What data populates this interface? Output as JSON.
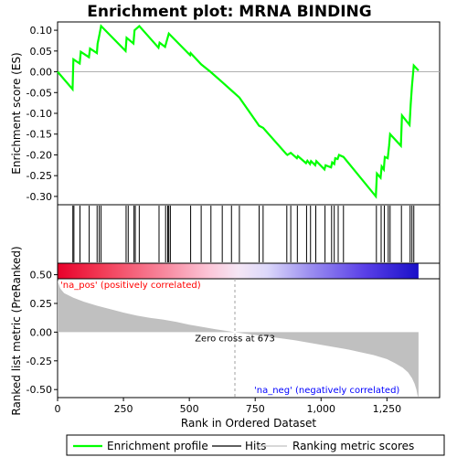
{
  "chart_data": {
    "type": "line",
    "title": "Enrichment plot: MRNA BINDING",
    "xlabel": "Rank in Ordered Dataset",
    "top_ylabel": "Enrichment score (ES)",
    "bottom_ylabel": "Ranked list metric (PreRanked)",
    "x_range": [
      0,
      1450
    ],
    "x_ticks": [
      0,
      250,
      500,
      750,
      1000,
      1250
    ],
    "x_tick_labels": [
      "0",
      "250",
      "500",
      "750",
      "1,000",
      "1,250"
    ],
    "es_range": [
      -0.32,
      0.12
    ],
    "es_ticks": [
      0.1,
      0.05,
      0.0,
      -0.05,
      -0.1,
      -0.15,
      -0.2,
      -0.25,
      -0.3
    ],
    "es_tick_labels": [
      "0.10",
      "0.05",
      "0.00",
      "-0.05",
      "-0.10",
      "-0.15",
      "-0.20",
      "-0.25",
      "-0.30"
    ],
    "metric_range": [
      -0.57,
      0.6
    ],
    "metric_ticks": [
      0.5,
      0.25,
      0.0,
      -0.25,
      -0.5
    ],
    "metric_tick_labels": [
      "0.50",
      "0.25",
      "0.00",
      "-0.25",
      "-0.50"
    ],
    "n_genes": 1370,
    "zero_cross": 673,
    "annotations": {
      "pos": "'na_pos' (positively correlated)",
      "neg": "'na_neg' (negatively correlated)",
      "zero": "Zero cross at 673"
    },
    "hits": [
      58,
      62,
      85,
      120,
      150,
      158,
      165,
      260,
      268,
      290,
      295,
      310,
      385,
      410,
      418,
      422,
      428,
      505,
      545,
      582,
      625,
      660,
      690,
      765,
      780,
      870,
      885,
      910,
      945,
      960,
      980,
      1015,
      1040,
      1050,
      1065,
      1085,
      1210,
      1228,
      1240,
      1255,
      1262,
      1305,
      1338,
      1345,
      1352
    ],
    "es_points": [
      [
        0,
        0.0
      ],
      [
        57,
        -0.042
      ],
      [
        60,
        0.03
      ],
      [
        84,
        0.02
      ],
      [
        88,
        0.048
      ],
      [
        119,
        0.035
      ],
      [
        123,
        0.056
      ],
      [
        149,
        0.045
      ],
      [
        152,
        0.068
      ],
      [
        158,
        0.086
      ],
      [
        165,
        0.11
      ],
      [
        258,
        0.05
      ],
      [
        262,
        0.082
      ],
      [
        288,
        0.068
      ],
      [
        292,
        0.1
      ],
      [
        310,
        0.11
      ],
      [
        383,
        0.058
      ],
      [
        387,
        0.07
      ],
      [
        408,
        0.06
      ],
      [
        422,
        0.092
      ],
      [
        503,
        0.04
      ],
      [
        505,
        0.045
      ],
      [
        545,
        0.018
      ],
      [
        580,
        0.0
      ],
      [
        625,
        -0.025
      ],
      [
        660,
        -0.045
      ],
      [
        690,
        -0.062
      ],
      [
        765,
        -0.13
      ],
      [
        780,
        -0.135
      ],
      [
        868,
        -0.198
      ],
      [
        872,
        -0.2
      ],
      [
        885,
        -0.195
      ],
      [
        908,
        -0.208
      ],
      [
        912,
        -0.203
      ],
      [
        943,
        -0.22
      ],
      [
        948,
        -0.214
      ],
      [
        958,
        -0.222
      ],
      [
        962,
        -0.215
      ],
      [
        978,
        -0.225
      ],
      [
        982,
        -0.215
      ],
      [
        1013,
        -0.235
      ],
      [
        1017,
        -0.225
      ],
      [
        1038,
        -0.23
      ],
      [
        1042,
        -0.218
      ],
      [
        1050,
        -0.222
      ],
      [
        1054,
        -0.208
      ],
      [
        1063,
        -0.21
      ],
      [
        1068,
        -0.2
      ],
      [
        1085,
        -0.205
      ],
      [
        1208,
        -0.3
      ],
      [
        1212,
        -0.245
      ],
      [
        1226,
        -0.255
      ],
      [
        1230,
        -0.228
      ],
      [
        1238,
        -0.235
      ],
      [
        1242,
        -0.205
      ],
      [
        1253,
        -0.208
      ],
      [
        1258,
        -0.178
      ],
      [
        1262,
        -0.15
      ],
      [
        1303,
        -0.178
      ],
      [
        1307,
        -0.105
      ],
      [
        1336,
        -0.128
      ],
      [
        1340,
        -0.08
      ],
      [
        1345,
        -0.035
      ],
      [
        1352,
        0.015
      ],
      [
        1370,
        0.003
      ]
    ],
    "metric_points": [
      [
        0,
        0.45
      ],
      [
        10,
        0.38
      ],
      [
        25,
        0.34
      ],
      [
        60,
        0.3
      ],
      [
        100,
        0.265
      ],
      [
        150,
        0.23
      ],
      [
        200,
        0.2
      ],
      [
        250,
        0.17
      ],
      [
        300,
        0.145
      ],
      [
        350,
        0.125
      ],
      [
        400,
        0.11
      ],
      [
        450,
        0.09
      ],
      [
        500,
        0.065
      ],
      [
        550,
        0.045
      ],
      [
        600,
        0.025
      ],
      [
        650,
        0.008
      ],
      [
        673,
        0.0
      ],
      [
        700,
        -0.01
      ],
      [
        750,
        -0.025
      ],
      [
        800,
        -0.04
      ],
      [
        850,
        -0.055
      ],
      [
        900,
        -0.07
      ],
      [
        950,
        -0.09
      ],
      [
        1000,
        -0.11
      ],
      [
        1050,
        -0.13
      ],
      [
        1100,
        -0.15
      ],
      [
        1150,
        -0.175
      ],
      [
        1200,
        -0.2
      ],
      [
        1250,
        -0.235
      ],
      [
        1280,
        -0.27
      ],
      [
        1310,
        -0.31
      ],
      [
        1330,
        -0.35
      ],
      [
        1345,
        -0.4
      ],
      [
        1355,
        -0.45
      ],
      [
        1362,
        -0.5
      ],
      [
        1366,
        -0.55
      ],
      [
        1370,
        -0.57
      ]
    ],
    "colorbar_stops": [
      {
        "offset": 0.0,
        "color": "#e8002a"
      },
      {
        "offset": 0.12,
        "color": "#f23a55"
      },
      {
        "offset": 0.3,
        "color": "#f88aa0"
      },
      {
        "offset": 0.42,
        "color": "#fcc6d8"
      },
      {
        "offset": 0.5,
        "color": "#f5e6f5"
      },
      {
        "offset": 0.58,
        "color": "#dcd8fa"
      },
      {
        "offset": 0.7,
        "color": "#9b8ef0"
      },
      {
        "offset": 0.85,
        "color": "#5a40e8"
      },
      {
        "offset": 1.0,
        "color": "#1a10c8"
      }
    ],
    "legend": [
      "Enrichment profile",
      "Hits",
      "Ranking metric scores"
    ],
    "colors": {
      "es_line": "#00ff00",
      "hit": "#000000",
      "metric_fill": "#c0c0c0",
      "pos_text": "#ff0000",
      "neg_text": "#0000ff",
      "zero_line": "#a0a0a0"
    }
  }
}
